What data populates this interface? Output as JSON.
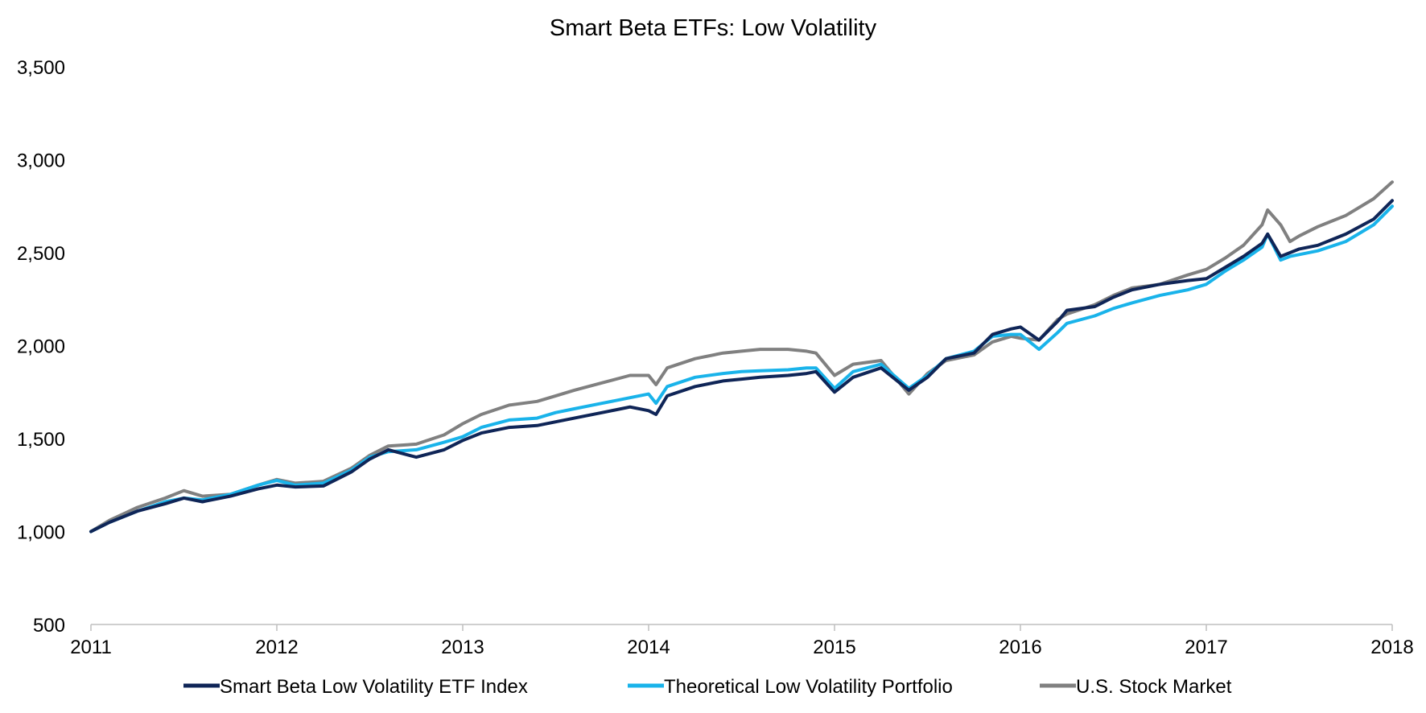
{
  "chart_data": {
    "type": "line",
    "title": "Smart Beta ETFs: Low Volatility",
    "xlabel": "",
    "ylabel": "",
    "xlim": [
      2011,
      2018
    ],
    "ylim": [
      500,
      3500
    ],
    "x_ticks": [
      "2011",
      "2012",
      "2013",
      "2014",
      "2015",
      "2016",
      "2017",
      "2018"
    ],
    "y_ticks": [
      "500",
      "1,000",
      "1,500",
      "2,000",
      "2,500",
      "3,000",
      "3,500"
    ],
    "grid": false,
    "legend_position": "bottom",
    "x": [
      2011.0,
      2011.1,
      2011.25,
      2011.4,
      2011.5,
      2011.6,
      2011.75,
      2011.9,
      2012.0,
      2012.1,
      2012.25,
      2012.4,
      2012.5,
      2012.6,
      2012.75,
      2012.9,
      2013.0,
      2013.1,
      2013.25,
      2013.4,
      2013.5,
      2013.6,
      2013.75,
      2013.9,
      2014.0,
      2014.04,
      2014.1,
      2014.25,
      2014.4,
      2014.5,
      2014.6,
      2014.75,
      2014.85,
      2014.9,
      2015.0,
      2015.1,
      2015.25,
      2015.4,
      2015.5,
      2015.6,
      2015.75,
      2015.85,
      2015.95,
      2016.0,
      2016.1,
      2016.2,
      2016.25,
      2016.4,
      2016.5,
      2016.6,
      2016.75,
      2016.9,
      2017.0,
      2017.1,
      2017.2,
      2017.3,
      2017.33,
      2017.4,
      2017.45,
      2017.5,
      2017.6,
      2017.75,
      2017.9,
      2018.0
    ],
    "series": [
      {
        "name": "Smart Beta Low Volatility ETF Index",
        "color": "#0f2557",
        "values": [
          1000,
          1050,
          1110,
          1150,
          1180,
          1160,
          1190,
          1230,
          1250,
          1240,
          1245,
          1320,
          1390,
          1440,
          1400,
          1440,
          1490,
          1530,
          1560,
          1570,
          1590,
          1610,
          1640,
          1670,
          1650,
          1630,
          1730,
          1780,
          1810,
          1820,
          1830,
          1840,
          1850,
          1860,
          1750,
          1830,
          1880,
          1760,
          1830,
          1930,
          1960,
          2060,
          2090,
          2100,
          2030,
          2130,
          2190,
          2210,
          2260,
          2300,
          2330,
          2350,
          2360,
          2420,
          2480,
          2550,
          2600,
          2480,
          2500,
          2520,
          2540,
          2600,
          2680,
          2780
        ]
      },
      {
        "name": "Theoretical Low Volatility Portfolio",
        "color": "#19b3ea",
        "values": [
          1000,
          1050,
          1110,
          1160,
          1180,
          1170,
          1200,
          1250,
          1275,
          1250,
          1260,
          1330,
          1400,
          1430,
          1440,
          1480,
          1510,
          1560,
          1600,
          1610,
          1640,
          1660,
          1690,
          1720,
          1740,
          1690,
          1780,
          1830,
          1850,
          1860,
          1865,
          1870,
          1880,
          1880,
          1770,
          1860,
          1900,
          1770,
          1840,
          1930,
          1970,
          2050,
          2060,
          2060,
          1980,
          2070,
          2120,
          2160,
          2200,
          2230,
          2270,
          2300,
          2330,
          2400,
          2460,
          2530,
          2600,
          2460,
          2480,
          2490,
          2510,
          2560,
          2650,
          2750
        ]
      },
      {
        "name": "U.S. Stock Market",
        "color": "#808080",
        "values": [
          1000,
          1060,
          1130,
          1180,
          1220,
          1190,
          1200,
          1250,
          1280,
          1260,
          1270,
          1340,
          1410,
          1460,
          1470,
          1520,
          1580,
          1630,
          1680,
          1700,
          1730,
          1760,
          1800,
          1840,
          1840,
          1790,
          1880,
          1930,
          1960,
          1970,
          1980,
          1980,
          1970,
          1960,
          1840,
          1900,
          1920,
          1740,
          1850,
          1920,
          1950,
          2020,
          2050,
          2040,
          2030,
          2140,
          2170,
          2220,
          2270,
          2310,
          2330,
          2380,
          2410,
          2470,
          2540,
          2650,
          2730,
          2650,
          2560,
          2590,
          2640,
          2700,
          2790,
          2880
        ]
      }
    ]
  }
}
